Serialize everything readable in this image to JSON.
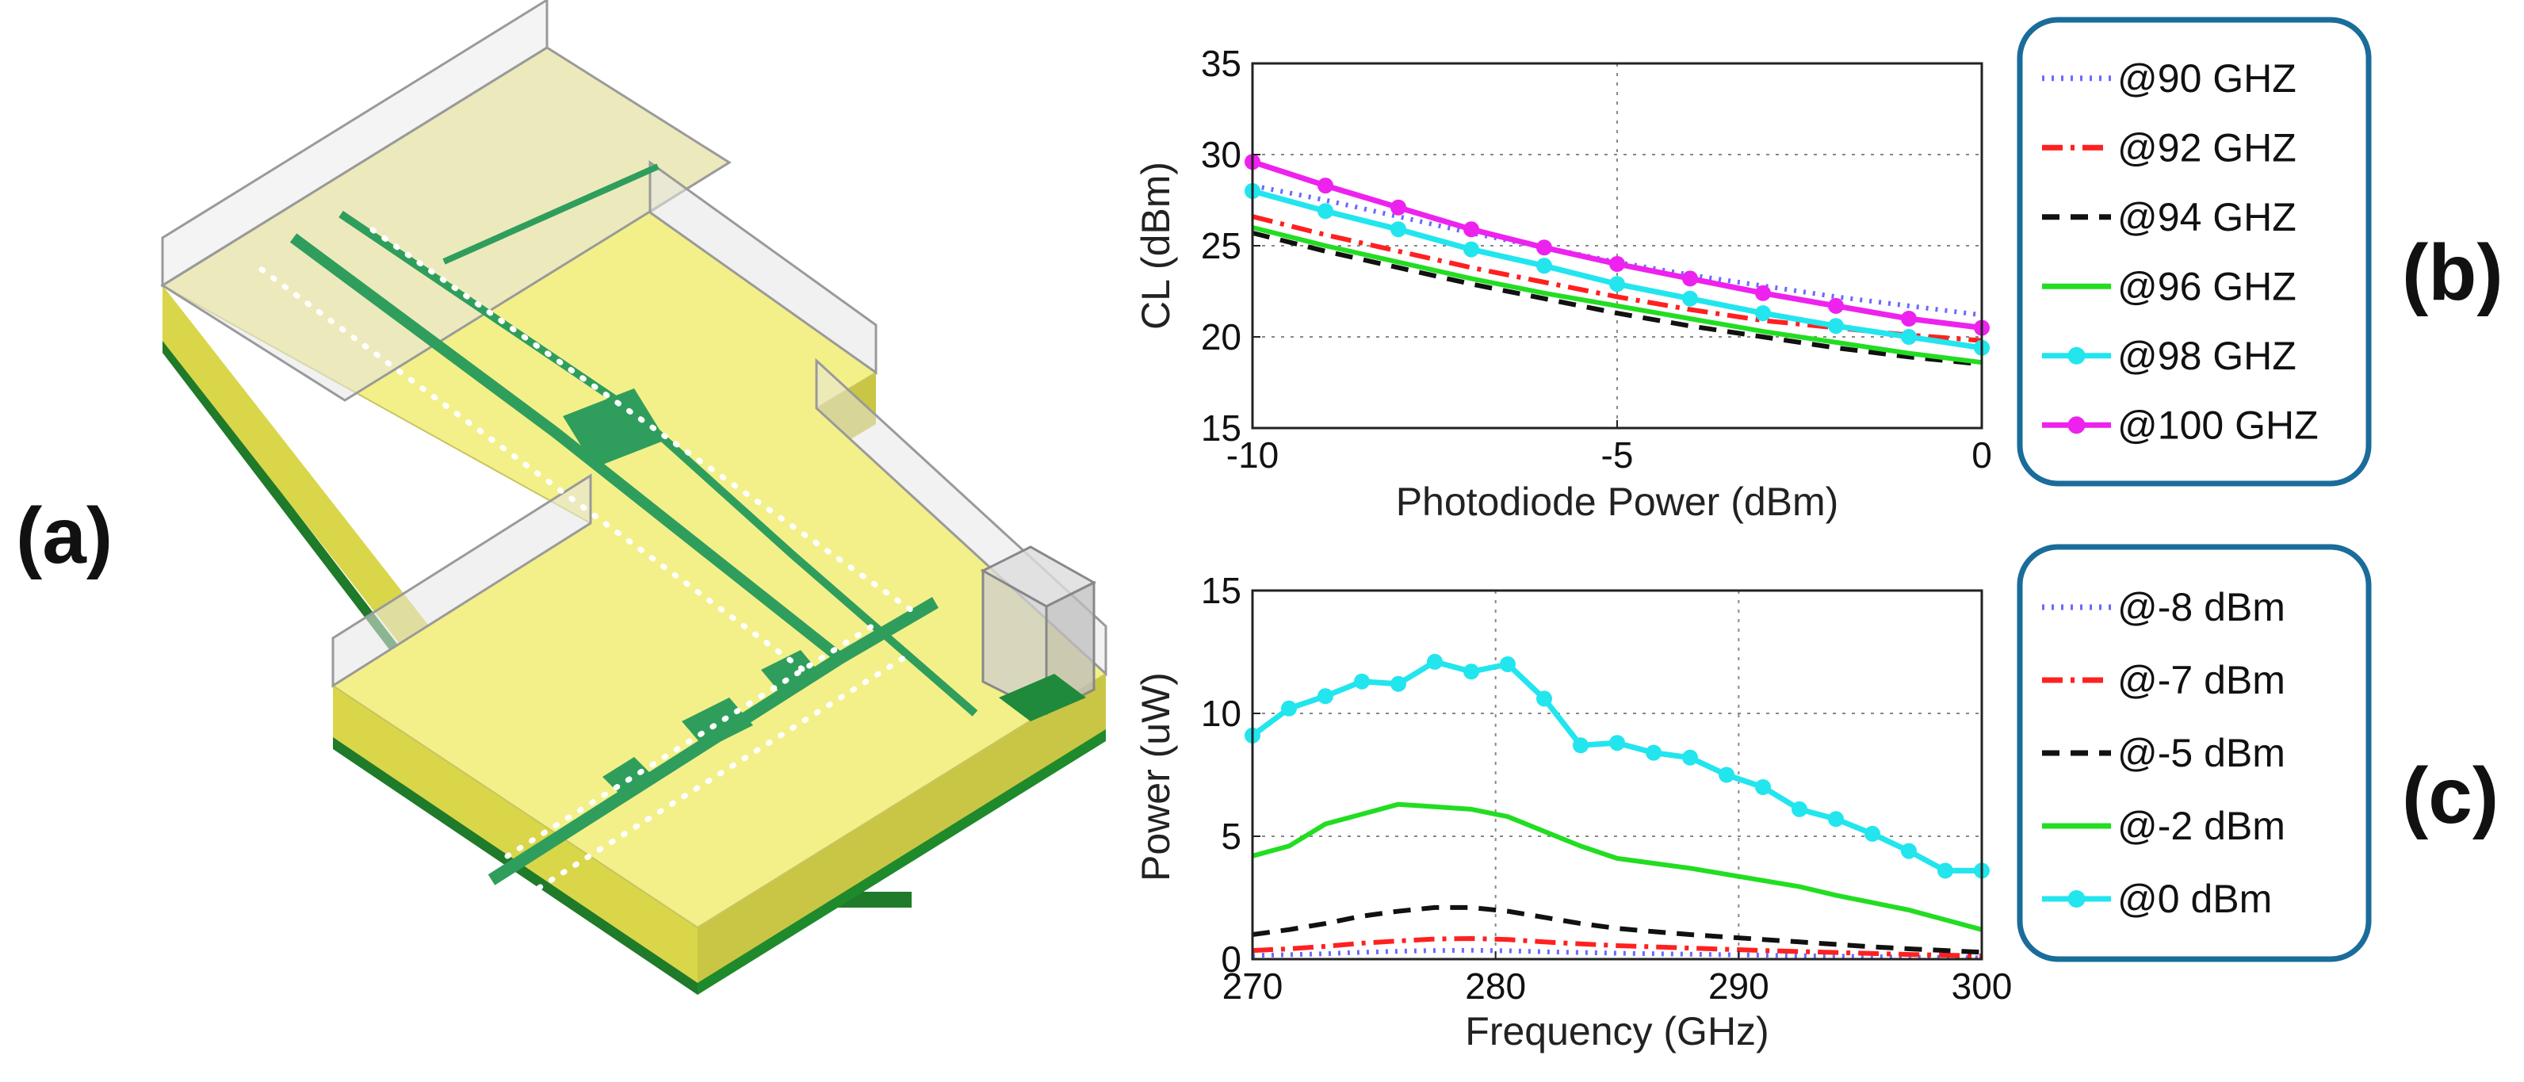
{
  "panel_labels": {
    "a": "(a)",
    "b": "(b)",
    "c": "(c)"
  },
  "figure_a": {
    "description_icon": "3d-circuit-model-icon"
  },
  "colors": {
    "substrate_top": "#f3f08a",
    "trace": "#2f9e5c",
    "legend_border": "#1a6c9a"
  },
  "chart_data": [
    {
      "id": "b",
      "type": "line",
      "title": "",
      "xlabel": "Photodiode Power (dBm)",
      "ylabel": "CL (dBm)",
      "xlim": [
        -10,
        0
      ],
      "ylim": [
        15,
        35
      ],
      "xticks": [
        -10,
        -5,
        0
      ],
      "yticks": [
        15,
        20,
        25,
        30,
        35
      ],
      "grid": true,
      "legend_position": "outside-right",
      "x": [
        -10,
        -9,
        -8,
        -7,
        -6,
        -5,
        -4,
        -3,
        -2,
        -1,
        0
      ],
      "series": [
        {
          "name": "@90 GHZ",
          "color": "#6a6aff",
          "dash": "dot",
          "marker": false,
          "values": [
            28.3,
            27.5,
            26.6,
            25.7,
            24.9,
            24.1,
            23.4,
            22.8,
            22.2,
            21.7,
            21.2
          ]
        },
        {
          "name": "@92 GHZ",
          "color": "#ff2020",
          "dash": "dashdot",
          "marker": false,
          "values": [
            26.6,
            25.6,
            24.7,
            23.8,
            23.0,
            22.2,
            21.5,
            20.9,
            20.5,
            20.1,
            19.8
          ]
        },
        {
          "name": "@94 GHZ",
          "color": "#111111",
          "dash": "dash",
          "marker": false,
          "values": [
            25.7,
            24.7,
            23.8,
            22.9,
            22.1,
            21.3,
            20.6,
            20.0,
            19.4,
            18.9,
            18.5
          ]
        },
        {
          "name": "@96 GHZ",
          "color": "#22dd22",
          "dash": "solid",
          "marker": false,
          "values": [
            26.0,
            25.0,
            24.1,
            23.2,
            22.4,
            21.7,
            21.0,
            20.3,
            19.7,
            19.1,
            18.6
          ]
        },
        {
          "name": "@98 GHZ",
          "color": "#22e5ee",
          "dash": "solid",
          "marker": true,
          "values": [
            28.0,
            26.9,
            25.9,
            24.8,
            23.9,
            22.9,
            22.1,
            21.3,
            20.6,
            20.0,
            19.4
          ]
        },
        {
          "name": "@100 GHZ",
          "color": "#ee22ee",
          "dash": "solid",
          "marker": true,
          "values": [
            29.6,
            28.3,
            27.1,
            25.9,
            24.9,
            24.0,
            23.2,
            22.4,
            21.7,
            21.0,
            20.5
          ]
        }
      ]
    },
    {
      "id": "c",
      "type": "line",
      "title": "",
      "xlabel": "Frequency (GHz)",
      "ylabel": "Power (uW)",
      "xlim": [
        270,
        300
      ],
      "ylim": [
        0,
        15
      ],
      "xticks": [
        270,
        280,
        290,
        300
      ],
      "yticks": [
        0,
        5,
        10,
        15
      ],
      "grid": true,
      "legend_position": "outside-right",
      "x": [
        270,
        271.5,
        273,
        274.5,
        276,
        277.5,
        279,
        280.5,
        282,
        283.5,
        285,
        286.5,
        288,
        289.5,
        291,
        292.5,
        294,
        295.5,
        297,
        298.5,
        300
      ],
      "series": [
        {
          "name": "@-8 dBm",
          "color": "#6a6aff",
          "dash": "dot",
          "marker": false,
          "values": [
            0.15,
            0.18,
            0.22,
            0.28,
            0.32,
            0.35,
            0.36,
            0.34,
            0.3,
            0.27,
            0.24,
            0.22,
            0.2,
            0.18,
            0.16,
            0.14,
            0.12,
            0.1,
            0.08,
            0.07,
            0.05
          ]
        },
        {
          "name": "@-7 dBm",
          "color": "#ff2020",
          "dash": "dashdot",
          "marker": false,
          "values": [
            0.35,
            0.42,
            0.52,
            0.65,
            0.74,
            0.82,
            0.84,
            0.8,
            0.7,
            0.62,
            0.55,
            0.5,
            0.45,
            0.4,
            0.35,
            0.31,
            0.27,
            0.23,
            0.19,
            0.16,
            0.13
          ]
        },
        {
          "name": "@-5 dBm",
          "color": "#111111",
          "dash": "dash",
          "marker": false,
          "values": [
            1.0,
            1.2,
            1.45,
            1.75,
            1.95,
            2.1,
            2.1,
            1.95,
            1.7,
            1.45,
            1.25,
            1.12,
            1.0,
            0.9,
            0.8,
            0.7,
            0.6,
            0.5,
            0.42,
            0.35,
            0.28
          ]
        },
        {
          "name": "@-2 dBm",
          "color": "#22dd22",
          "dash": "solid",
          "marker": false,
          "values": [
            4.2,
            4.6,
            5.5,
            5.9,
            6.3,
            6.2,
            6.1,
            5.8,
            5.2,
            4.6,
            4.1,
            3.9,
            3.7,
            3.45,
            3.2,
            2.95,
            2.6,
            2.3,
            2.0,
            1.6,
            1.2
          ]
        },
        {
          "name": "@0 dBm",
          "color": "#22e5ee",
          "dash": "solid",
          "marker": true,
          "values": [
            9.1,
            10.2,
            10.7,
            11.3,
            11.2,
            12.1,
            11.7,
            12.0,
            10.6,
            8.7,
            8.8,
            8.4,
            8.2,
            7.5,
            7.0,
            6.1,
            5.7,
            5.1,
            4.4,
            3.6,
            3.6
          ]
        }
      ]
    }
  ]
}
